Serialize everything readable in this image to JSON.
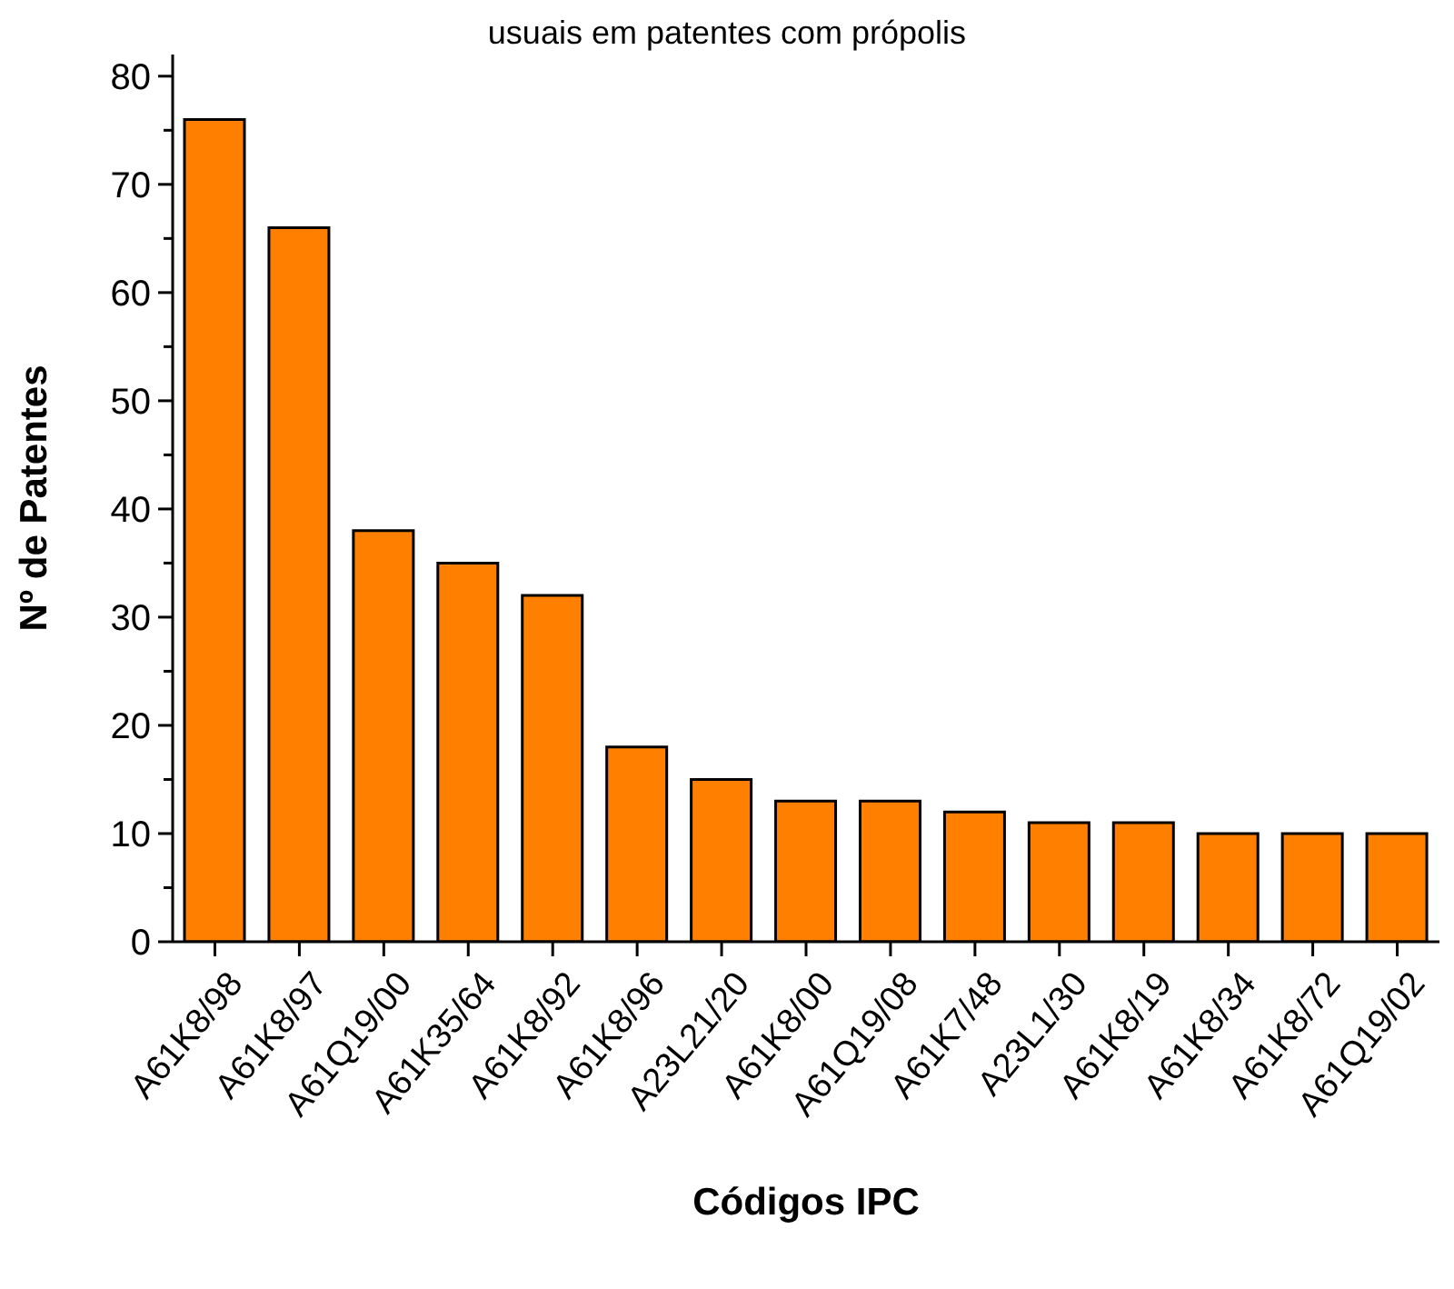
{
  "chart_data": {
    "type": "bar",
    "title": "usuais em patentes com própolis",
    "xlabel": "Códigos IPC",
    "ylabel": "Nº de Patentes",
    "categories": [
      "A61K8/98",
      "A61K8/97",
      "A61Q19/00",
      "A61K35/64",
      "A61K8/92",
      "A61K8/96",
      "A23L21/20",
      "A61K8/00",
      "A61Q19/08",
      "A61K7/48",
      "A23L1/30",
      "A61K8/19",
      "A61K8/34",
      "A61K8/72",
      "A61Q19/02"
    ],
    "values": [
      76,
      66,
      38,
      35,
      32,
      18,
      15,
      13,
      13,
      12,
      11,
      11,
      10,
      10,
      10
    ],
    "color": "#ff8000",
    "ylim": [
      0,
      82
    ],
    "yticks": [
      0,
      {
        "value": 5,
        "label": null
      },
      10,
      {
        "value": 15,
        "label": null
      },
      20,
      {
        "value": 25,
        "label": null
      },
      30,
      {
        "value": 35,
        "label": null
      },
      40,
      {
        "value": 45,
        "label": null
      },
      50,
      {
        "value": 55,
        "label": null
      },
      60,
      {
        "value": 65,
        "label": null
      },
      70,
      {
        "value": 75,
        "label": null
      },
      80
    ],
    "grid": false
  }
}
